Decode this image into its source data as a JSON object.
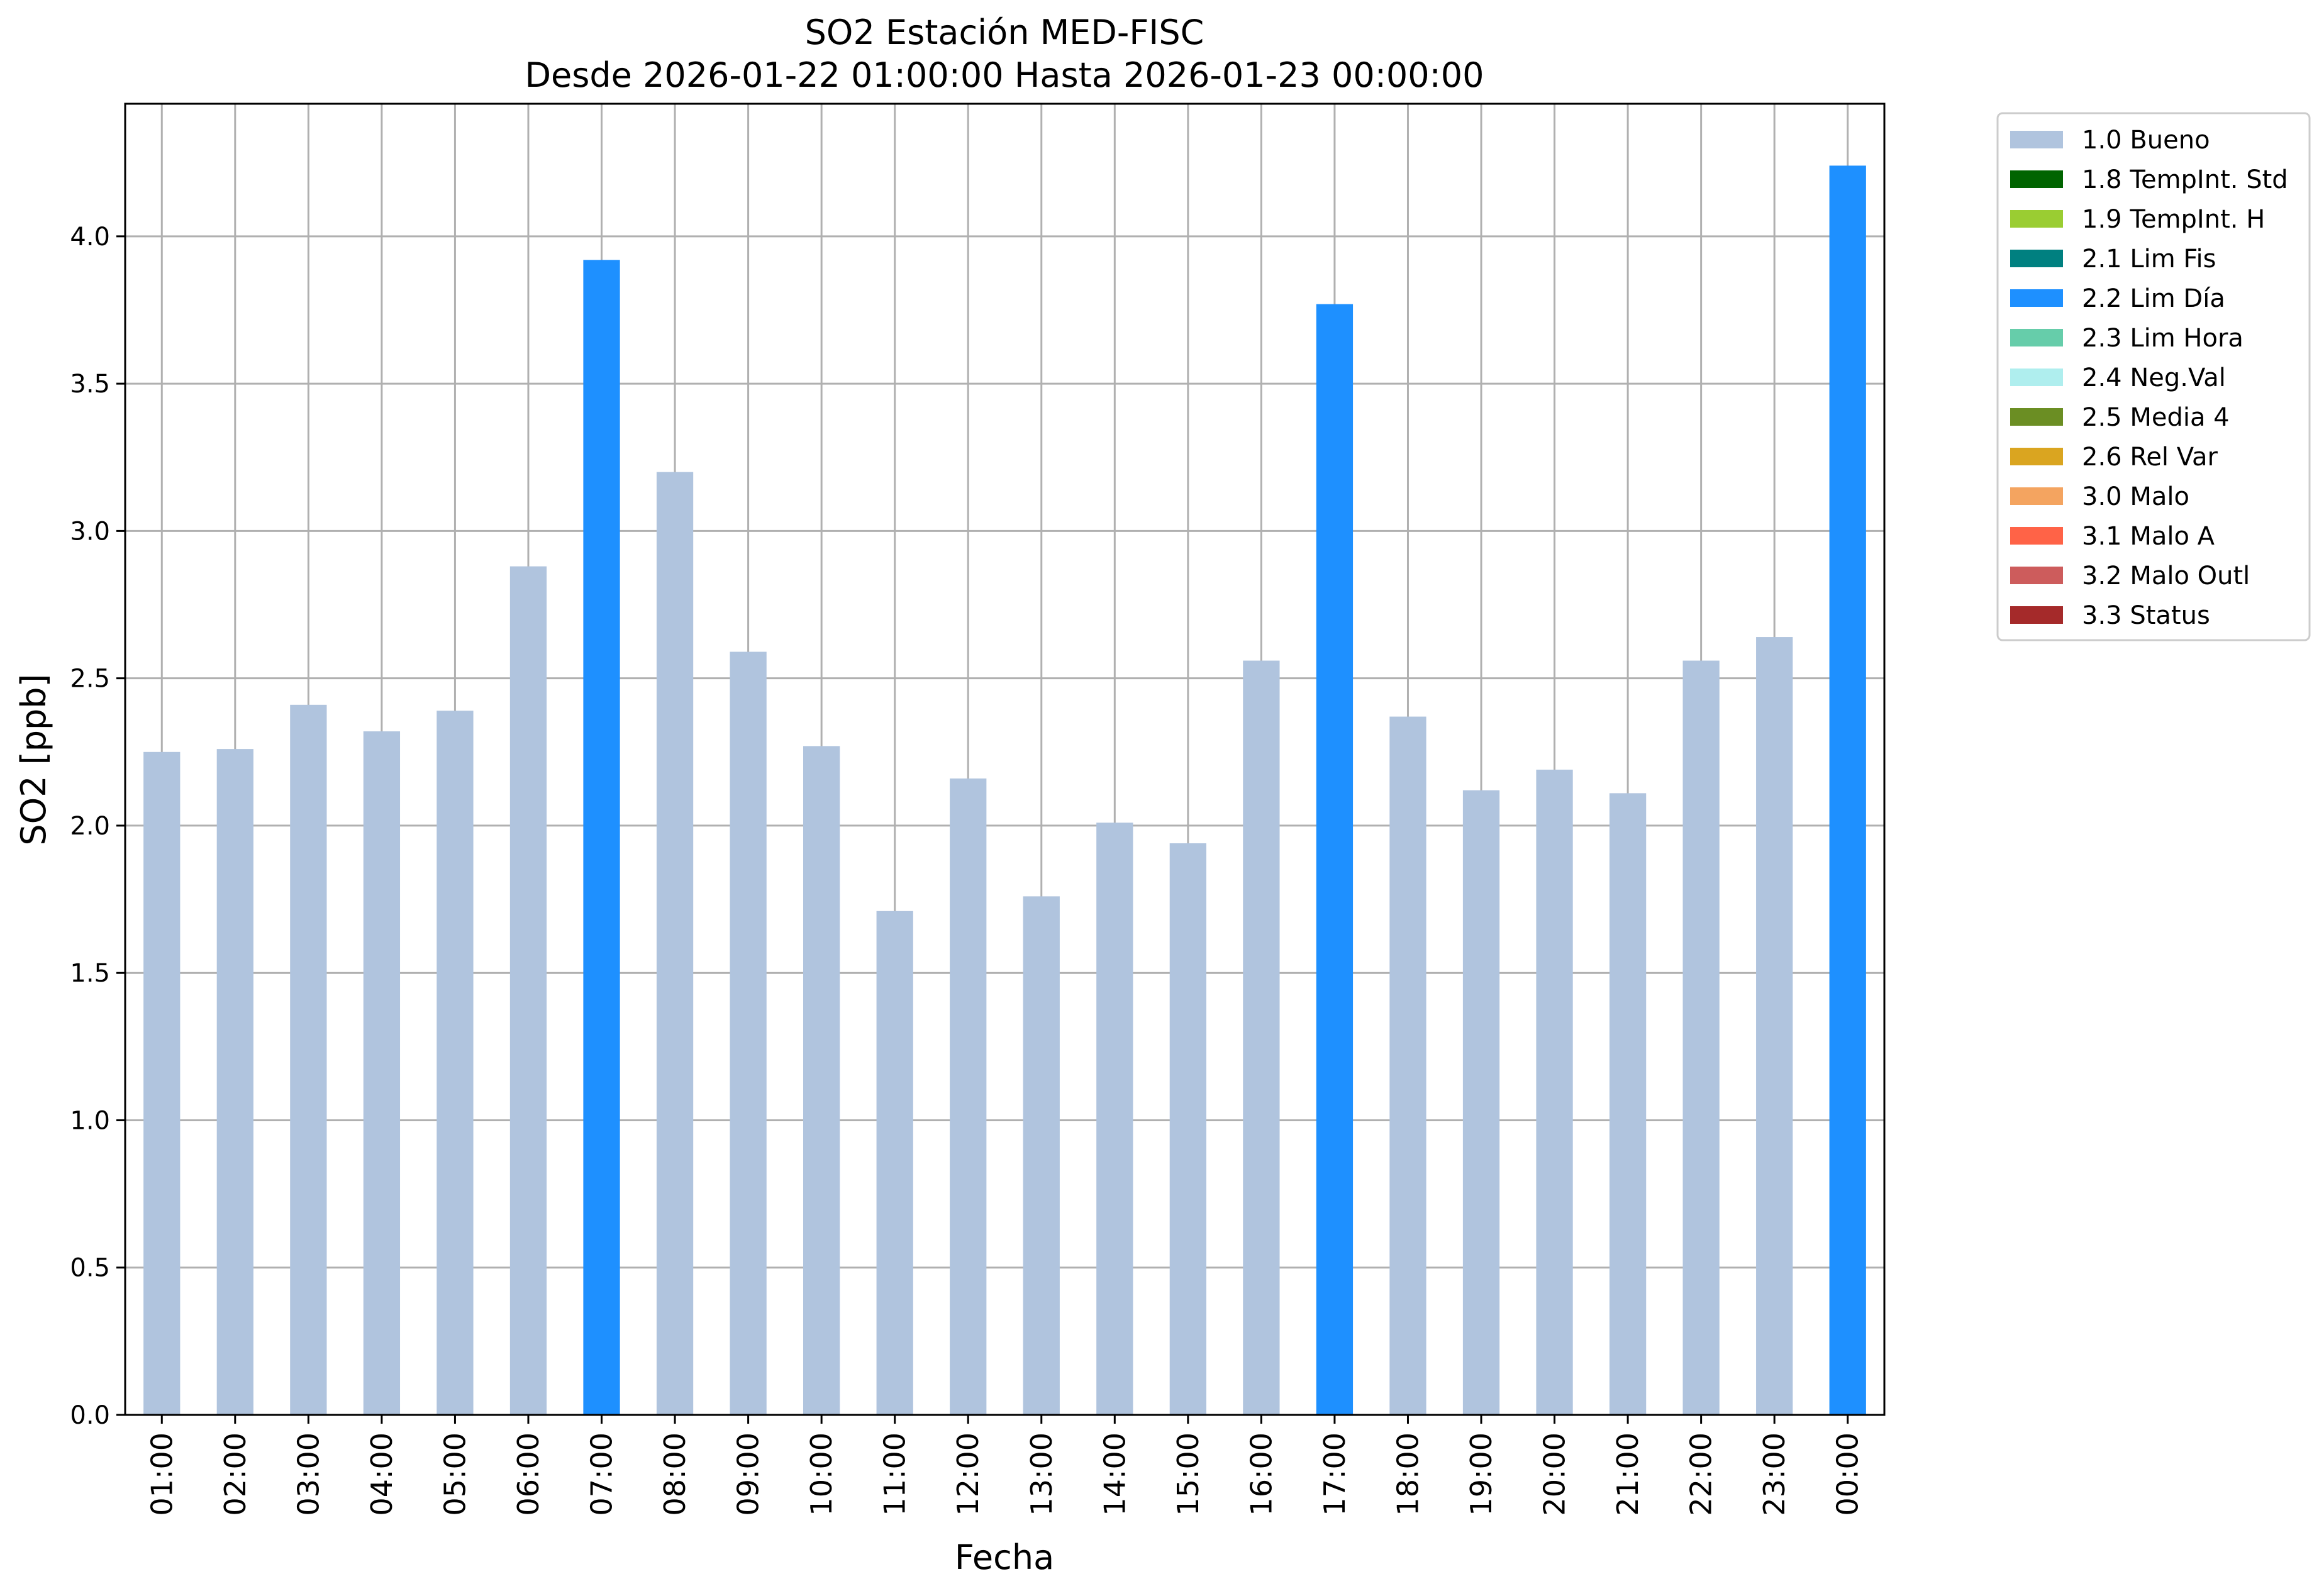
{
  "chart_data": {
    "type": "bar",
    "title": "SO2 Estación MED-FISC",
    "subtitle": "Desde 2026-01-22 01:00:00 Hasta 2026-01-23 00:00:00",
    "xlabel": "Fecha",
    "ylabel": "SO2 [ppb]",
    "ylim": [
      0,
      4.45
    ],
    "yticks": [
      "0.0",
      "0.5",
      "1.0",
      "1.5",
      "2.0",
      "2.5",
      "3.0",
      "3.5",
      "4.0"
    ],
    "grid": true,
    "legend_position": "outside-right-top",
    "categories": [
      "01:00",
      "02:00",
      "03:00",
      "04:00",
      "05:00",
      "06:00",
      "07:00",
      "08:00",
      "09:00",
      "10:00",
      "11:00",
      "12:00",
      "13:00",
      "14:00",
      "15:00",
      "16:00",
      "17:00",
      "18:00",
      "19:00",
      "20:00",
      "21:00",
      "22:00",
      "23:00",
      "00:00"
    ],
    "values": [
      2.25,
      2.26,
      2.41,
      2.32,
      2.39,
      2.88,
      3.92,
      3.2,
      2.59,
      2.27,
      1.71,
      2.16,
      1.76,
      2.01,
      1.94,
      2.56,
      3.77,
      2.37,
      2.12,
      2.19,
      2.11,
      2.56,
      2.64,
      4.24
    ],
    "flags": [
      "1.0 Bueno",
      "1.0 Bueno",
      "1.0 Bueno",
      "1.0 Bueno",
      "1.0 Bueno",
      "1.0 Bueno",
      "2.2 Lim Día",
      "1.0 Bueno",
      "1.0 Bueno",
      "1.0 Bueno",
      "1.0 Bueno",
      "1.0 Bueno",
      "1.0 Bueno",
      "1.0 Bueno",
      "1.0 Bueno",
      "1.0 Bueno",
      "2.2 Lim Día",
      "1.0 Bueno",
      "1.0 Bueno",
      "1.0 Bueno",
      "1.0 Bueno",
      "1.0 Bueno",
      "1.0 Bueno",
      "2.2 Lim Día"
    ],
    "legend": [
      {
        "label": "1.0 Bueno",
        "color": "#b0c4de"
      },
      {
        "label": "1.8 TempInt. Std",
        "color": "#006400"
      },
      {
        "label": "1.9 TempInt. H",
        "color": "#9acd32"
      },
      {
        "label": "2.1 Lim Fis",
        "color": "#008080"
      },
      {
        "label": "2.2 Lim Día",
        "color": "#1e90ff"
      },
      {
        "label": "2.3 Lim Hora",
        "color": "#66cdaa"
      },
      {
        "label": "2.4 Neg.Val",
        "color": "#afeeee"
      },
      {
        "label": "2.5 Media 4",
        "color": "#6b8e23"
      },
      {
        "label": "2.6 Rel Var",
        "color": "#daa520"
      },
      {
        "label": "3.0 Malo",
        "color": "#f4a460"
      },
      {
        "label": "3.1 Malo A",
        "color": "#ff6347"
      },
      {
        "label": "3.2 Malo Outl",
        "color": "#cd5c5c"
      },
      {
        "label": "3.3 Status",
        "color": "#a52a2a"
      }
    ]
  }
}
